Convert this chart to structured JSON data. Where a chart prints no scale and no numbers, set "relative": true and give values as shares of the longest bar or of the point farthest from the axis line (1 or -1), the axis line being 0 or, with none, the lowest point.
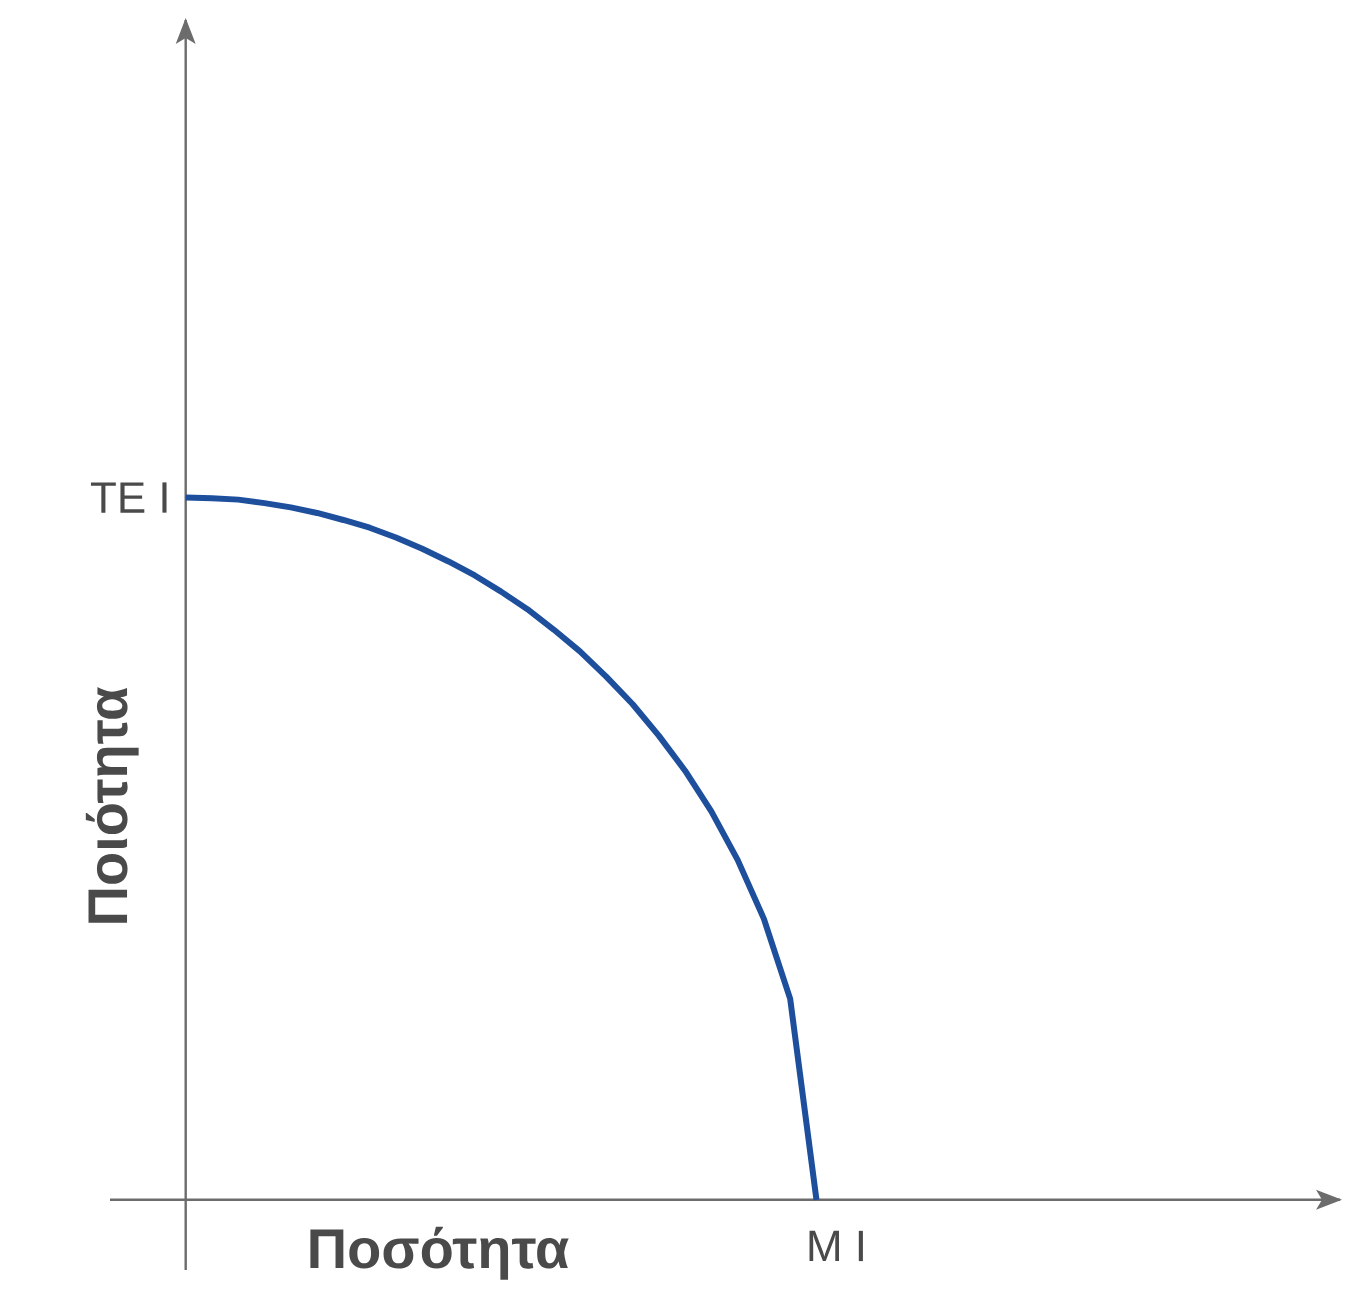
{
  "chart_data": {
    "type": "line",
    "relative": true,
    "xlabel": "Ποσότητα",
    "ylabel": "Ποιότητα",
    "categories": [
      null,
      null,
      null,
      null,
      null,
      null,
      null,
      null,
      null,
      null,
      null,
      null,
      null,
      null,
      null,
      null,
      null,
      null,
      null,
      null,
      null,
      null,
      null,
      null,
      null
    ],
    "series": [
      {
        "color": "#1d4f9c",
        "values": [
          1,
          0.999,
          0.997,
          0.992,
          0.986,
          0.978,
          0.968,
          0.957,
          0.943,
          0.927,
          0.909,
          0.889,
          0.866,
          0.841,
          0.812,
          0.781,
          0.745,
          0.706,
          0.661,
          0.611,
          0.553,
          0.484,
          0.4,
          0.286,
          0
        ]
      }
    ],
    "annotations": [
      "TE I",
      "M I"
    ],
    "marker": "none",
    "line_style": "solid"
  }
}
